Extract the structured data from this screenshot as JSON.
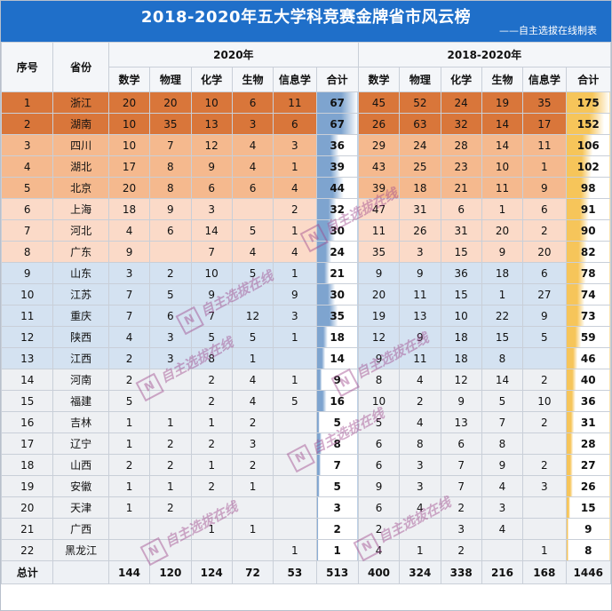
{
  "title": "2018-2020年五大学科竞赛金牌省市风云榜",
  "subtitle": "——自主选拔在线制表",
  "header": {
    "rank": "序号",
    "province": "省份",
    "group_2020": "2020年",
    "group_range": "2018-2020年",
    "subjects": [
      "数学",
      "物理",
      "化学",
      "生物",
      "信息学",
      "合计"
    ]
  },
  "rows": [
    {
      "rank": "1",
      "province": "浙江",
      "y2020": [
        "20",
        "20",
        "10",
        "6",
        "11",
        "67"
      ],
      "range": [
        "45",
        "52",
        "24",
        "19",
        "35",
        "175"
      ]
    },
    {
      "rank": "2",
      "province": "湖南",
      "y2020": [
        "10",
        "35",
        "13",
        "3",
        "6",
        "67"
      ],
      "range": [
        "26",
        "63",
        "32",
        "14",
        "17",
        "152"
      ]
    },
    {
      "rank": "3",
      "province": "四川",
      "y2020": [
        "10",
        "7",
        "12",
        "4",
        "3",
        "36"
      ],
      "range": [
        "29",
        "24",
        "28",
        "14",
        "11",
        "106"
      ]
    },
    {
      "rank": "4",
      "province": "湖北",
      "y2020": [
        "17",
        "8",
        "9",
        "4",
        "1",
        "39"
      ],
      "range": [
        "43",
        "25",
        "23",
        "10",
        "1",
        "102"
      ]
    },
    {
      "rank": "5",
      "province": "北京",
      "y2020": [
        "20",
        "8",
        "6",
        "6",
        "4",
        "44"
      ],
      "range": [
        "39",
        "18",
        "21",
        "11",
        "9",
        "98"
      ]
    },
    {
      "rank": "6",
      "province": "上海",
      "y2020": [
        "18",
        "9",
        "3",
        "",
        "2",
        "32"
      ],
      "range": [
        "47",
        "31",
        "6",
        "1",
        "6",
        "91"
      ]
    },
    {
      "rank": "7",
      "province": "河北",
      "y2020": [
        "4",
        "6",
        "14",
        "5",
        "1",
        "30"
      ],
      "range": [
        "11",
        "26",
        "31",
        "20",
        "2",
        "90"
      ]
    },
    {
      "rank": "8",
      "province": "广东",
      "y2020": [
        "9",
        "",
        "7",
        "4",
        "4",
        "24"
      ],
      "range": [
        "35",
        "3",
        "15",
        "9",
        "20",
        "82"
      ]
    },
    {
      "rank": "9",
      "province": "山东",
      "y2020": [
        "3",
        "2",
        "10",
        "5",
        "1",
        "21"
      ],
      "range": [
        "9",
        "9",
        "36",
        "18",
        "6",
        "78"
      ]
    },
    {
      "rank": "10",
      "province": "江苏",
      "y2020": [
        "7",
        "5",
        "9",
        "",
        "9",
        "30"
      ],
      "range": [
        "20",
        "11",
        "15",
        "1",
        "27",
        "74"
      ]
    },
    {
      "rank": "11",
      "province": "重庆",
      "y2020": [
        "7",
        "6",
        "7",
        "12",
        "3",
        "35"
      ],
      "range": [
        "19",
        "13",
        "10",
        "22",
        "9",
        "73"
      ]
    },
    {
      "rank": "12",
      "province": "陕西",
      "y2020": [
        "4",
        "3",
        "5",
        "5",
        "1",
        "18"
      ],
      "range": [
        "12",
        "9",
        "18",
        "15",
        "5",
        "59"
      ]
    },
    {
      "rank": "13",
      "province": "江西",
      "y2020": [
        "2",
        "3",
        "8",
        "1",
        "",
        "14"
      ],
      "range": [
        "9",
        "11",
        "18",
        "8",
        "",
        "46"
      ]
    },
    {
      "rank": "14",
      "province": "河南",
      "y2020": [
        "2",
        "",
        "2",
        "4",
        "1",
        "9"
      ],
      "range": [
        "8",
        "4",
        "12",
        "14",
        "2",
        "40"
      ]
    },
    {
      "rank": "15",
      "province": "福建",
      "y2020": [
        "5",
        "",
        "2",
        "4",
        "5",
        "16"
      ],
      "range": [
        "10",
        "2",
        "9",
        "5",
        "10",
        "36"
      ]
    },
    {
      "rank": "16",
      "province": "吉林",
      "y2020": [
        "1",
        "1",
        "1",
        "2",
        "",
        "5"
      ],
      "range": [
        "5",
        "4",
        "13",
        "7",
        "2",
        "31"
      ]
    },
    {
      "rank": "17",
      "province": "辽宁",
      "y2020": [
        "1",
        "2",
        "2",
        "3",
        "",
        "8"
      ],
      "range": [
        "6",
        "8",
        "6",
        "8",
        "",
        "28"
      ]
    },
    {
      "rank": "18",
      "province": "山西",
      "y2020": [
        "2",
        "2",
        "1",
        "2",
        "",
        "7"
      ],
      "range": [
        "6",
        "3",
        "7",
        "9",
        "2",
        "27"
      ]
    },
    {
      "rank": "19",
      "province": "安徽",
      "y2020": [
        "1",
        "1",
        "2",
        "1",
        "",
        "5"
      ],
      "range": [
        "9",
        "3",
        "7",
        "4",
        "3",
        "26"
      ]
    },
    {
      "rank": "20",
      "province": "天津",
      "y2020": [
        "1",
        "2",
        "",
        "",
        "",
        "3"
      ],
      "range": [
        "6",
        "4",
        "2",
        "3",
        "",
        "15"
      ]
    },
    {
      "rank": "21",
      "province": "广西",
      "y2020": [
        "",
        "",
        "1",
        "1",
        "",
        "2"
      ],
      "range": [
        "2",
        "",
        "3",
        "4",
        "",
        "9"
      ]
    },
    {
      "rank": "22",
      "province": "黑龙江",
      "y2020": [
        "",
        "",
        "",
        "",
        "1",
        "1"
      ],
      "range": [
        "4",
        "1",
        "2",
        "",
        "1",
        "8"
      ]
    }
  ],
  "footer": {
    "label": "总计",
    "y2020": [
      "144",
      "120",
      "124",
      "72",
      "53",
      "513"
    ],
    "range": [
      "400",
      "324",
      "338",
      "216",
      "168",
      "1446"
    ]
  },
  "watermark": {
    "text": "自主选拔在线",
    "logo": "N"
  },
  "colors": {
    "title_bg": "#1f6fc9",
    "row_band_top": "#d9763a",
    "row_band_mid": "#f5b98e",
    "row_band_light": "#fbdac8",
    "row_band_blue": "#d4e2f1",
    "row_band_grey": "#eef0f3",
    "total_2020_bar": "#7ea4cf",
    "total_range_bar": "#f6c55a"
  }
}
